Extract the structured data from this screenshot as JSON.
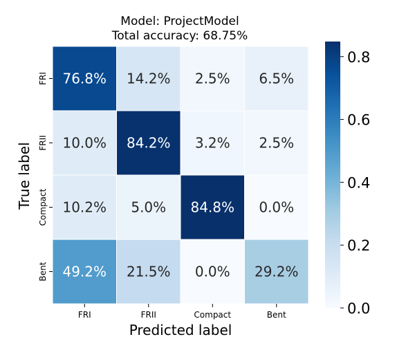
{
  "chart_data": {
    "type": "heatmap",
    "title_lines": [
      "Model: ProjectModel",
      "Total accuracy: 68.75%"
    ],
    "xlabel": "Predicted label",
    "ylabel": "True label",
    "x_categories": [
      "FRI",
      "FRII",
      "Compact",
      "Bent"
    ],
    "y_categories": [
      "FRI",
      "FRII",
      "Compact",
      "Bent"
    ],
    "values": [
      [
        0.768,
        0.142,
        0.025,
        0.065
      ],
      [
        0.1,
        0.842,
        0.032,
        0.025
      ],
      [
        0.102,
        0.05,
        0.848,
        0.0
      ],
      [
        0.492,
        0.215,
        0.0,
        0.292
      ]
    ],
    "cell_labels": [
      [
        "76.8%",
        "14.2%",
        "2.5%",
        "6.5%"
      ],
      [
        "10.0%",
        "84.2%",
        "3.2%",
        "2.5%"
      ],
      [
        "10.2%",
        "5.0%",
        "84.8%",
        "0.0%"
      ],
      [
        "49.2%",
        "21.5%",
        "0.0%",
        "29.2%"
      ]
    ],
    "colorbar": {
      "range": [
        0,
        0.848
      ],
      "ticks": [
        0.0,
        0.2,
        0.4,
        0.6,
        0.8
      ],
      "tick_labels": [
        "0.0",
        "0.2",
        "0.4",
        "0.6",
        "0.8"
      ],
      "colormap": "Blues"
    }
  }
}
